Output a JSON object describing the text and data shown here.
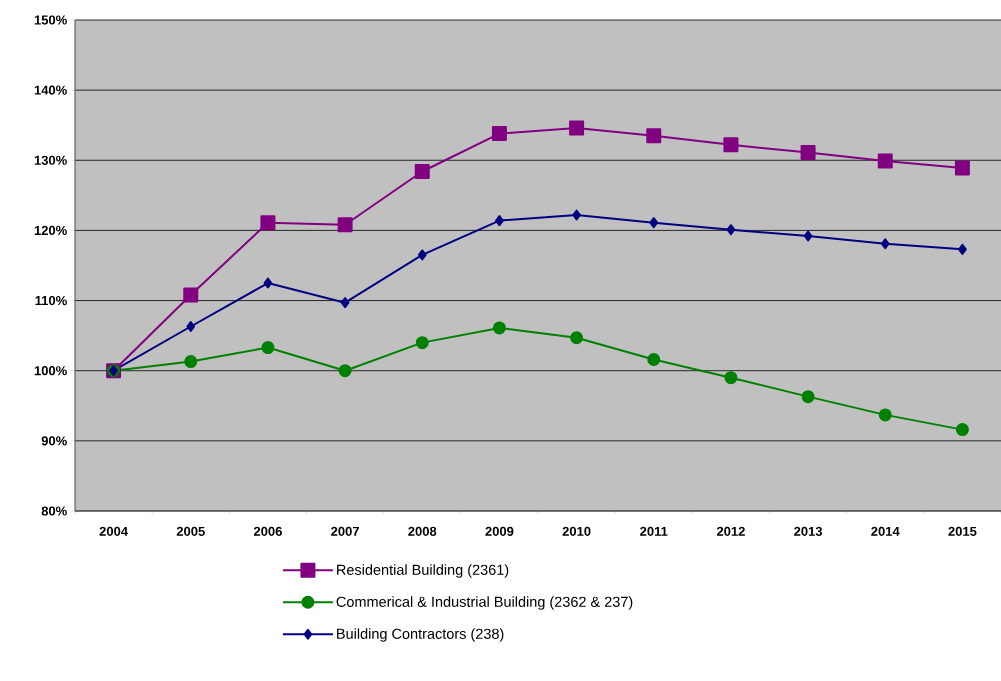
{
  "chart_data": {
    "type": "line",
    "categories": [
      "2004",
      "2005",
      "2006",
      "2007",
      "2008",
      "2009",
      "2010",
      "2011",
      "2012",
      "2013",
      "2014",
      "2015"
    ],
    "series": [
      {
        "name": "Residential Building (2361)",
        "color": "#800080",
        "marker": "square",
        "values": [
          100,
          110.8,
          121.1,
          120.8,
          128.4,
          133.8,
          134.6,
          133.5,
          132.2,
          131.1,
          129.9,
          128.9
        ]
      },
      {
        "name": "Commerical & Industrial Building (2362 & 237)",
        "color": "#008000",
        "marker": "circle",
        "values": [
          100,
          101.3,
          103.3,
          100,
          104,
          106.1,
          104.7,
          101.6,
          99,
          96.3,
          93.7,
          91.6
        ]
      },
      {
        "name": "Building Contractors (238)",
        "color": "#000080",
        "marker": "diamond",
        "values": [
          100,
          106.3,
          112.5,
          109.7,
          116.5,
          121.4,
          122.2,
          121.1,
          120.1,
          119.2,
          118.1,
          117.3
        ]
      }
    ],
    "ylim": [
      80,
      150
    ],
    "yticks": [
      {
        "value": 80,
        "label": "80%"
      },
      {
        "value": 90,
        "label": "90%"
      },
      {
        "value": 100,
        "label": "100%"
      },
      {
        "value": 110,
        "label": "110%"
      },
      {
        "value": 120,
        "label": "120%"
      },
      {
        "value": 130,
        "label": "130%"
      },
      {
        "value": 140,
        "label": "140%"
      },
      {
        "value": 150,
        "label": "150%"
      }
    ],
    "grid": "y",
    "legend": "bottom",
    "line_style": "solid"
  }
}
